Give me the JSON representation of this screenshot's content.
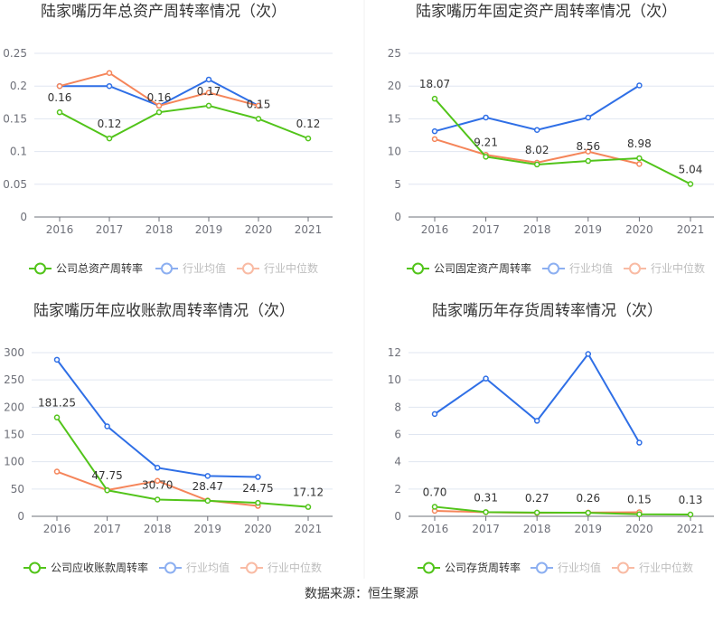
{
  "source": "数据来源：恒生聚源",
  "colors": {
    "company": "#52c41a",
    "avg": "#2f6fe6",
    "median": "#f5855a",
    "grid": "#e0e6f1",
    "axis": "#6e7079"
  },
  "chart_data": [
    {
      "type": "line",
      "title": "陆家嘴历年总资产周转率情况（次）",
      "categories": [
        "2016",
        "2017",
        "2018",
        "2019",
        "2020",
        "2021"
      ],
      "ylim": [
        0,
        0.25
      ],
      "yticks": [
        "0",
        "0.05",
        "0.1",
        "0.15",
        "0.2",
        "0.25"
      ],
      "series": [
        {
          "name": "公司总资产周转率",
          "key": "company",
          "values": [
            0.16,
            0.12,
            0.16,
            0.17,
            0.15,
            0.12
          ],
          "labels": [
            "0.16",
            "0.12",
            "0.16",
            "0.17",
            "0.15",
            "0.12"
          ]
        },
        {
          "name": "行业均值",
          "key": "avg",
          "values": [
            0.2,
            0.2,
            0.17,
            0.21,
            0.17,
            null
          ]
        },
        {
          "name": "行业中位数",
          "key": "median",
          "values": [
            0.2,
            0.22,
            0.17,
            0.19,
            0.17,
            null
          ]
        }
      ],
      "legend": "bottom"
    },
    {
      "type": "line",
      "title": "陆家嘴历年固定资产周转率情况（次）",
      "categories": [
        "2016",
        "2017",
        "2018",
        "2019",
        "2020",
        "2021"
      ],
      "ylim": [
        0,
        25
      ],
      "yticks": [
        "0",
        "5",
        "10",
        "15",
        "20",
        "25"
      ],
      "series": [
        {
          "name": "公司固定资产周转率",
          "key": "company",
          "values": [
            18.07,
            9.21,
            8.02,
            8.56,
            8.98,
            5.04
          ],
          "labels": [
            "18.07",
            "9.21",
            "8.02",
            "8.56",
            "8.98",
            "5.04"
          ]
        },
        {
          "name": "行业均值",
          "key": "avg",
          "values": [
            13.1,
            15.2,
            13.3,
            15.2,
            20.1,
            null
          ]
        },
        {
          "name": "行业中位数",
          "key": "median",
          "values": [
            11.9,
            9.5,
            8.3,
            10.0,
            8.1,
            null
          ]
        }
      ],
      "legend": "bottom"
    },
    {
      "type": "line",
      "title": "陆家嘴历年应收账款周转率情况（次）",
      "categories": [
        "2016",
        "2017",
        "2018",
        "2019",
        "2020",
        "2021"
      ],
      "ylim": [
        0,
        300
      ],
      "yticks": [
        "0",
        "50",
        "100",
        "150",
        "200",
        "250",
        "300"
      ],
      "series": [
        {
          "name": "公司应收账款周转率",
          "key": "company",
          "values": [
            181.25,
            47.75,
            30.7,
            28.47,
            24.75,
            17.12
          ],
          "labels": [
            "181.25",
            "47.75",
            "30.70",
            "28.47",
            "24.75",
            "17.12"
          ]
        },
        {
          "name": "行业均值",
          "key": "avg",
          "values": [
            287,
            165,
            89,
            74,
            72,
            null
          ]
        },
        {
          "name": "行业中位数",
          "key": "median",
          "values": [
            82,
            48,
            65,
            29,
            19,
            null
          ]
        }
      ],
      "legend": "bottom"
    },
    {
      "type": "line",
      "title": "陆家嘴历年存货周转率情况（次）",
      "categories": [
        "2016",
        "2017",
        "2018",
        "2019",
        "2020",
        "2021"
      ],
      "ylim": [
        0,
        12
      ],
      "yticks": [
        "0",
        "2",
        "4",
        "6",
        "8",
        "10",
        "12"
      ],
      "series": [
        {
          "name": "公司存货周转率",
          "key": "company",
          "values": [
            0.7,
            0.31,
            0.27,
            0.26,
            0.15,
            0.13
          ],
          "labels": [
            "0.70",
            "0.31",
            "0.27",
            "0.26",
            "0.15",
            "0.13"
          ]
        },
        {
          "name": "行业均值",
          "key": "avg",
          "values": [
            7.5,
            10.1,
            7.0,
            11.9,
            5.4,
            null
          ]
        },
        {
          "name": "行业中位数",
          "key": "median",
          "values": [
            0.4,
            0.3,
            0.25,
            0.27,
            0.3,
            null
          ]
        }
      ],
      "legend": "bottom"
    }
  ]
}
